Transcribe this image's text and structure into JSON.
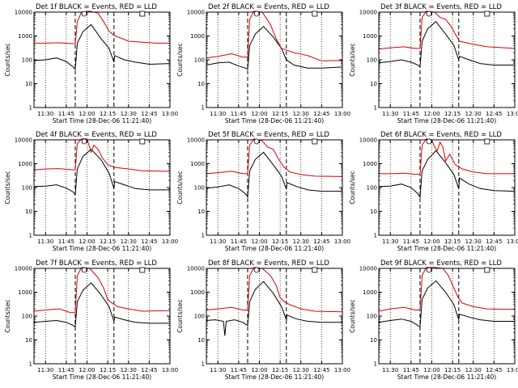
{
  "page": {
    "background": "#ffffff"
  },
  "chart_data": {
    "type": "line",
    "y_scale": "log",
    "ylim": [
      1,
      10000
    ],
    "y_ticklabels": [
      "1",
      "10",
      "100",
      "1000",
      "10000"
    ],
    "xlim": [
      "11:21:40",
      "13:00:00"
    ],
    "x_ticklabels": [
      "11:30",
      "11:45",
      "12:00",
      "12:15",
      "12:30",
      "12:45",
      "13:00"
    ],
    "ylabel": "Counts/sec",
    "xlabel": "Start Time (28-Dec-06 11:21:40)",
    "grid": "vertical dotted lines at each x tick",
    "markers": {
      "dashed_vertical_lines": [
        "11:51:30",
        "12:19:30"
      ]
    },
    "colors": {
      "events": "#000000",
      "lld": "#e00000",
      "axes": "#000000"
    },
    "panels": [
      {
        "title": "Det 1f BLACK = Events, RED = LLD",
        "series": [
          {
            "name": "Events",
            "color": "#000000",
            "x": [
              "11:21:40",
              "11:30",
              "11:38",
              "11:45",
              "11:50",
              "11:51:30",
              "11:53",
              "11:57",
              "12:03",
              "12:10",
              "12:16",
              "12:19:30",
              "12:20",
              "12:27",
              "12:35",
              "12:45",
              "13:00"
            ],
            "y": [
              95,
              100,
              120,
              85,
              50,
              40,
              500,
              1500,
              3000,
              800,
              300,
              80,
              150,
              100,
              80,
              65,
              70
            ]
          },
          {
            "name": "LLD",
            "color": "#e00000",
            "x": [
              "11:21:40",
              "11:30",
              "11:40",
              "11:48",
              "11:51:30",
              "11:53",
              "11:56",
              "12:02",
              "12:08",
              "12:12",
              "12:16",
              "12:20",
              "12:25",
              "12:30",
              "12:40",
              "12:50",
              "13:00"
            ],
            "y": [
              500,
              500,
              520,
              480,
              480,
              4000,
              10000,
              11000,
              9000,
              4000,
              1600,
              1000,
              800,
              600,
              550,
              500,
              500
            ]
          }
        ]
      },
      {
        "title": "Det 2f BLACK = Events, RED = LLD",
        "series": [
          {
            "name": "Events",
            "color": "#000000",
            "x": [
              "11:21:40",
              "11:30",
              "11:38",
              "11:45",
              "11:50",
              "11:51:30",
              "11:53",
              "11:57",
              "12:03",
              "12:10",
              "12:16",
              "12:19:30",
              "12:25",
              "12:35",
              "12:45",
              "13:00"
            ],
            "y": [
              60,
              75,
              80,
              55,
              45,
              40,
              400,
              1200,
              2500,
              900,
              300,
              100,
              60,
              45,
              45,
              50
            ]
          },
          {
            "name": "LLD",
            "color": "#e00000",
            "x": [
              "11:21:40",
              "11:30",
              "11:40",
              "11:48",
              "11:51:30",
              "11:53",
              "11:56",
              "12:02",
              "12:08",
              "12:12",
              "12:16",
              "12:20",
              "12:25",
              "12:35",
              "12:45",
              "13:00"
            ],
            "y": [
              120,
              140,
              180,
              130,
              130,
              5000,
              11000,
              10000,
              3000,
              800,
              300,
              250,
              200,
              150,
              90,
              95
            ]
          }
        ]
      },
      {
        "title": "Det 3f BLACK = Events, RED = LLD",
        "series": [
          {
            "name": "Events",
            "color": "#000000",
            "x": [
              "11:21:40",
              "11:30",
              "11:38",
              "11:45",
              "11:50",
              "11:51:30",
              "11:53",
              "11:57",
              "12:03",
              "12:10",
              "12:16",
              "12:19:30",
              "12:20",
              "12:27",
              "12:35",
              "12:45",
              "13:00"
            ],
            "y": [
              75,
              85,
              100,
              80,
              60,
              50,
              600,
              2000,
              4000,
              1200,
              400,
              100,
              140,
              100,
              70,
              60,
              60
            ]
          },
          {
            "name": "LLD",
            "color": "#e00000",
            "x": [
              "11:21:40",
              "11:30",
              "11:40",
              "11:48",
              "11:51:30",
              "11:53",
              "11:56",
              "12:02",
              "12:06",
              "12:10",
              "12:14",
              "12:17",
              "12:20",
              "12:30",
              "12:40",
              "13:00"
            ],
            "y": [
              280,
              320,
              350,
              300,
              300,
              6000,
              11000,
              10000,
              6000,
              5000,
              2500,
              1200,
              600,
              450,
              350,
              300
            ]
          }
        ]
      },
      {
        "title": "Det 4f BLACK = Events, RED = LLD",
        "series": [
          {
            "name": "Events",
            "color": "#000000",
            "x": [
              "11:21:40",
              "11:30",
              "11:38",
              "11:45",
              "11:50",
              "11:51:30",
              "11:53",
              "11:57",
              "12:03",
              "12:10",
              "12:16",
              "12:19:30",
              "12:20",
              "12:27",
              "12:35",
              "12:45",
              "13:00"
            ],
            "y": [
              110,
              115,
              130,
              95,
              65,
              50,
              600,
              2000,
              4000,
              1500,
              400,
              90,
              180,
              130,
              90,
              80,
              80
            ]
          },
          {
            "name": "LLD",
            "color": "#e00000",
            "x": [
              "11:21:40",
              "11:30",
              "11:40",
              "11:48",
              "11:51:30",
              "11:53",
              "11:56",
              "12:00",
              "12:03",
              "12:05",
              "12:08",
              "12:11",
              "12:15",
              "12:20",
              "12:30",
              "12:40",
              "13:00"
            ],
            "y": [
              550,
              600,
              620,
              560,
              550,
              7000,
              11000,
              11000,
              3000,
              6000,
              4000,
              1800,
              900,
              700,
              600,
              500,
              480
            ]
          }
        ]
      },
      {
        "title": "Det 5f BLACK = Events, RED = LLD",
        "series": [
          {
            "name": "Events",
            "color": "#000000",
            "x": [
              "11:21:40",
              "11:30",
              "11:38",
              "11:45",
              "11:50",
              "11:51:30",
              "11:53",
              "11:57",
              "12:03",
              "12:10",
              "12:16",
              "12:19:30",
              "12:20",
              "12:27",
              "12:35",
              "12:45",
              "13:00"
            ],
            "y": [
              95,
              105,
              130,
              90,
              55,
              40,
              500,
              1500,
              3000,
              900,
              300,
              85,
              160,
              110,
              80,
              70,
              70
            ]
          },
          {
            "name": "LLD",
            "color": "#e00000",
            "x": [
              "11:21:40",
              "11:30",
              "11:40",
              "11:48",
              "11:51:30",
              "11:53",
              "11:56",
              "12:02",
              "12:06",
              "12:10",
              "12:14",
              "12:18",
              "12:22",
              "12:30",
              "12:40",
              "13:00"
            ],
            "y": [
              380,
              420,
              480,
              380,
              380,
              6000,
              11000,
              9000,
              5000,
              4000,
              1500,
              700,
              450,
              350,
              300,
              290
            ]
          }
        ]
      },
      {
        "title": "Det 6f BLACK = Events, RED = LLD",
        "series": [
          {
            "name": "Events",
            "color": "#000000",
            "x": [
              "11:21:40",
              "11:30",
              "11:38",
              "11:45",
              "11:50",
              "11:51:30",
              "11:53",
              "11:57",
              "12:03",
              "12:10",
              "12:16",
              "12:19:30",
              "12:20",
              "12:27",
              "12:35",
              "12:45",
              "13:00"
            ],
            "y": [
              110,
              115,
              140,
              100,
              55,
              40,
              500,
              1500,
              3500,
              1100,
              350,
              90,
              250,
              140,
              90,
              75,
              70
            ]
          },
          {
            "name": "LLD",
            "color": "#e00000",
            "x": [
              "11:21:40",
              "11:30",
              "11:40",
              "11:48",
              "11:51:30",
              "11:53",
              "11:56",
              "12:00",
              "12:02",
              "12:04",
              "12:06",
              "12:08",
              "12:10",
              "12:13",
              "12:17",
              "12:22",
              "12:30",
              "12:40",
              "13:00"
            ],
            "y": [
              380,
              380,
              400,
              360,
              360,
              6000,
              11000,
              10000,
              5000,
              3500,
              8000,
              5000,
              1300,
              2500,
              900,
              600,
              450,
              380,
              380
            ]
          }
        ]
      },
      {
        "title": "Det 7f BLACK = Events, RED = LLD",
        "series": [
          {
            "name": "Events",
            "color": "#000000",
            "x": [
              "11:21:40",
              "11:30",
              "11:38",
              "11:45",
              "11:50",
              "11:51:30",
              "11:53",
              "11:57",
              "12:03",
              "12:10",
              "12:16",
              "12:19:30",
              "12:20",
              "12:27",
              "12:35",
              "12:45",
              "13:00"
            ],
            "y": [
              55,
              60,
              65,
              55,
              40,
              35,
              400,
              1200,
              2500,
              800,
              250,
              60,
              90,
              70,
              55,
              50,
              50
            ]
          },
          {
            "name": "LLD",
            "color": "#e00000",
            "x": [
              "11:21:40",
              "11:30",
              "11:40",
              "11:48",
              "11:51:30",
              "11:53",
              "11:56",
              "12:02",
              "12:08",
              "12:12",
              "12:15",
              "12:18",
              "12:22",
              "12:30",
              "12:40",
              "13:00"
            ],
            "y": [
              160,
              180,
              200,
              140,
              140,
              5000,
              11000,
              10000,
              4000,
              1500,
              500,
              350,
              250,
              200,
              160,
              170
            ]
          }
        ]
      },
      {
        "title": "Det 8f BLACK = Events, RED = LLD",
        "series": [
          {
            "name": "Events",
            "color": "#000000",
            "x": [
              "11:21:40",
              "11:28",
              "11:34",
              "11:35",
              "11:36",
              "11:42",
              "11:48",
              "11:51:30",
              "11:53",
              "11:57",
              "12:03",
              "12:10",
              "12:16",
              "12:19:30",
              "12:20",
              "12:27",
              "12:35",
              "12:45",
              "13:00"
            ],
            "y": [
              65,
              70,
              60,
              15,
              60,
              70,
              55,
              40,
              400,
              1300,
              2800,
              900,
              250,
              70,
              110,
              75,
              60,
              55,
              55
            ]
          },
          {
            "name": "LLD",
            "color": "#e00000",
            "x": [
              "11:21:40",
              "11:30",
              "11:40",
              "11:48",
              "11:51:30",
              "11:53",
              "11:56",
              "12:02",
              "12:08",
              "12:12",
              "12:15",
              "12:18",
              "12:22",
              "12:30",
              "12:40",
              "13:00"
            ],
            "y": [
              180,
              200,
              230,
              180,
              180,
              5000,
              11000,
              10000,
              5000,
              2000,
              600,
              400,
              300,
              200,
              160,
              150
            ]
          }
        ]
      },
      {
        "title": "Det 9f BLACK = Events, RED = LLD",
        "series": [
          {
            "name": "Events",
            "color": "#000000",
            "x": [
              "11:21:40",
              "11:30",
              "11:38",
              "11:45",
              "11:50",
              "11:51:30",
              "11:53",
              "11:57",
              "12:03",
              "12:10",
              "12:16",
              "12:19:30",
              "12:20",
              "12:27",
              "12:35",
              "12:45",
              "13:00"
            ],
            "y": [
              55,
              65,
              75,
              60,
              40,
              35,
              500,
              1500,
              3000,
              1000,
              300,
              70,
              120,
              90,
              70,
              60,
              60
            ]
          },
          {
            "name": "LLD",
            "color": "#e00000",
            "x": [
              "11:21:40",
              "11:30",
              "11:40",
              "11:48",
              "11:51:30",
              "11:53",
              "11:56",
              "12:02",
              "12:08",
              "12:12",
              "12:16",
              "12:19",
              "12:22",
              "12:30",
              "12:40",
              "13:00"
            ],
            "y": [
              160,
              200,
              230,
              180,
              180,
              5000,
              11000,
              11000,
              10000,
              5000,
              1500,
              600,
              350,
              250,
              200,
              190
            ]
          }
        ]
      }
    ]
  }
}
